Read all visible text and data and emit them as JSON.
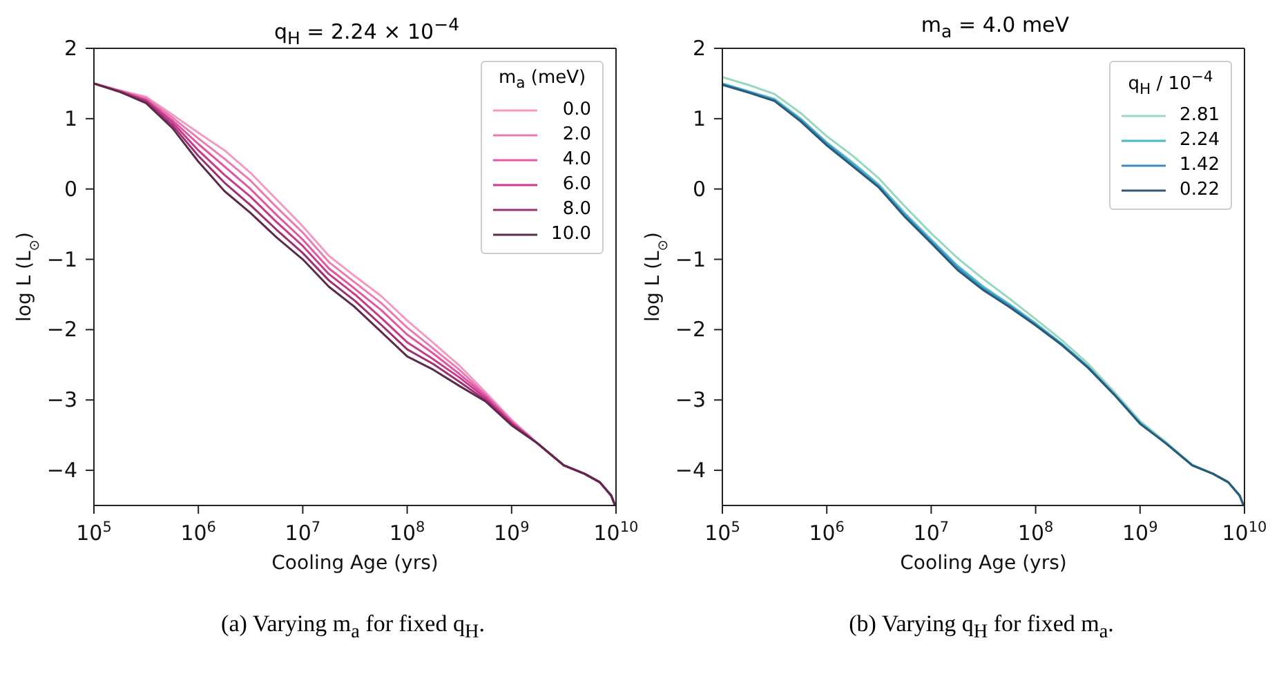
{
  "chart_data": [
    {
      "type": "line",
      "title": "q$_{H}$ = 2.24 × 10$^{−4}$",
      "xlabel": "Cooling Age (yrs)",
      "ylabel": "log L (L$_{⊙}$)",
      "legend_title": "m$_{a}$ (meV)",
      "legend": "top right",
      "log": "x",
      "annotations": [
        "(a) Varying m$_{a}$ for fixed q$_{H}$."
      ],
      "xlim": [
        100000,
        10000000000
      ],
      "xticks": [
        {
          "value": 100000,
          "label": "10$^{5}$"
        },
        {
          "value": 1000000,
          "label": "10$^{6}$"
        },
        {
          "value": 10000000,
          "label": "10$^{7}$"
        },
        {
          "value": 100000000,
          "label": "10$^{8}$"
        },
        {
          "value": 1000000000,
          "label": "10$^{9}$"
        },
        {
          "value": 10000000000,
          "label": "10$^{10}$"
        }
      ],
      "ylim": [
        -4.5,
        2
      ],
      "yticks": [
        {
          "value": -4,
          "label": "−4"
        },
        {
          "value": -3,
          "label": "−3"
        },
        {
          "value": -2,
          "label": "−2"
        },
        {
          "value": -1,
          "label": "−1"
        },
        0,
        1,
        2
      ],
      "x": [
        100000,
        178000,
        316000,
        562000,
        1000000,
        1780000,
        3160000,
        5620000,
        10000000,
        17800000,
        31600000,
        56200000,
        100000000,
        178000000,
        316000000,
        562000000,
        1000000000,
        1780000000,
        3160000000,
        5000000000,
        7000000000,
        9000000000,
        9800000000
      ],
      "series": [
        {
          "name": "0.0",
          "color": "#f49ac1",
          "values": [
            1.5,
            1.4,
            1.31,
            1.06,
            0.8,
            0.55,
            0.23,
            -0.15,
            -0.53,
            -0.95,
            -1.24,
            -1.52,
            -1.87,
            -2.19,
            -2.51,
            -2.89,
            -3.28,
            -3.62,
            -3.93,
            -4.05,
            -4.17,
            -4.36,
            -4.5
          ]
        },
        {
          "name": "2.0",
          "color": "#ea7ab4",
          "values": [
            1.5,
            1.4,
            1.29,
            1.02,
            0.72,
            0.43,
            0.12,
            -0.26,
            -0.62,
            -1.04,
            -1.33,
            -1.62,
            -1.97,
            -2.27,
            -2.57,
            -2.92,
            -3.3,
            -3.62,
            -3.93,
            -4.05,
            -4.17,
            -4.36,
            -4.5
          ]
        },
        {
          "name": "4.0",
          "color": "#df57a3",
          "values": [
            1.5,
            1.39,
            1.27,
            0.98,
            0.64,
            0.32,
            0.0,
            -0.37,
            -0.72,
            -1.13,
            -1.42,
            -1.72,
            -2.07,
            -2.34,
            -2.63,
            -2.94,
            -3.31,
            -3.62,
            -3.93,
            -4.05,
            -4.17,
            -4.36,
            -4.5
          ]
        },
        {
          "name": "6.0",
          "color": "#c73a8c",
          "values": [
            1.5,
            1.39,
            1.26,
            0.95,
            0.55,
            0.2,
            -0.11,
            -0.47,
            -0.81,
            -1.21,
            -1.5,
            -1.83,
            -2.18,
            -2.42,
            -2.68,
            -2.97,
            -3.33,
            -3.62,
            -3.93,
            -4.05,
            -4.17,
            -4.36,
            -4.5
          ]
        },
        {
          "name": "8.0",
          "color": "#9e2f72",
          "values": [
            1.5,
            1.38,
            1.24,
            0.91,
            0.47,
            0.09,
            -0.23,
            -0.58,
            -0.91,
            -1.3,
            -1.59,
            -1.93,
            -2.28,
            -2.49,
            -2.74,
            -3.0,
            -3.34,
            -3.62,
            -3.93,
            -4.05,
            -4.17,
            -4.36,
            -4.5
          ]
        },
        {
          "name": "10.0",
          "color": "#5c2a4a",
          "values": [
            1.5,
            1.38,
            1.22,
            0.87,
            0.39,
            -0.03,
            -0.34,
            -0.69,
            -1.0,
            -1.39,
            -1.68,
            -2.03,
            -2.38,
            -2.57,
            -2.8,
            -3.02,
            -3.36,
            -3.62,
            -3.93,
            -4.05,
            -4.17,
            -4.36,
            -4.5
          ]
        }
      ]
    },
    {
      "type": "line",
      "title": "m$_{a}$ = 4.0 meV",
      "xlabel": "Cooling Age (yrs)",
      "ylabel": "log L (L$_{⊙}$)",
      "legend_title": "q$_{H}$ / 10$^{−4}$",
      "legend": "top right",
      "log": "x",
      "annotations": [
        "(b) Varying q$_{H}$ for fixed m$_{a}$."
      ],
      "xlim": [
        100000,
        10000000000
      ],
      "xticks": [
        {
          "value": 100000,
          "label": "10$^{5}$"
        },
        {
          "value": 1000000,
          "label": "10$^{6}$"
        },
        {
          "value": 10000000,
          "label": "10$^{7}$"
        },
        {
          "value": 100000000,
          "label": "10$^{8}$"
        },
        {
          "value": 1000000000,
          "label": "10$^{9}$"
        },
        {
          "value": 10000000000,
          "label": "10$^{10}$"
        }
      ],
      "ylim": [
        -4.5,
        2
      ],
      "yticks": [
        {
          "value": -4,
          "label": "−4"
        },
        {
          "value": -3,
          "label": "−3"
        },
        {
          "value": -2,
          "label": "−2"
        },
        {
          "value": -1,
          "label": "−1"
        },
        0,
        1,
        2
      ],
      "x": [
        100000,
        178000,
        316000,
        562000,
        1000000,
        1780000,
        3160000,
        5620000,
        10000000,
        17800000,
        31600000,
        56200000,
        100000000,
        178000000,
        316000000,
        562000000,
        1000000000,
        1780000000,
        3160000000,
        5000000000,
        7000000000,
        9000000000,
        9800000000
      ],
      "series": [
        {
          "name": "2.81",
          "color": "#98d8c0",
          "values": [
            1.59,
            1.48,
            1.35,
            1.08,
            0.75,
            0.47,
            0.15,
            -0.25,
            -0.63,
            -0.98,
            -1.28,
            -1.56,
            -1.85,
            -2.15,
            -2.48,
            -2.88,
            -3.3,
            -3.6,
            -3.92,
            -4.05,
            -4.17,
            -4.36,
            -4.5
          ]
        },
        {
          "name": "2.24",
          "color": "#4cb8cc",
          "values": [
            1.5,
            1.39,
            1.28,
            1.0,
            0.66,
            0.37,
            0.06,
            -0.35,
            -0.72,
            -1.09,
            -1.39,
            -1.64,
            -1.91,
            -2.2,
            -2.52,
            -2.91,
            -3.32,
            -3.62,
            -3.93,
            -4.05,
            -4.17,
            -4.36,
            -4.5
          ]
        },
        {
          "name": "1.42",
          "color": "#3a8cc0",
          "values": [
            1.49,
            1.38,
            1.26,
            0.98,
            0.64,
            0.34,
            0.03,
            -0.38,
            -0.75,
            -1.12,
            -1.42,
            -1.66,
            -1.93,
            -2.21,
            -2.53,
            -2.92,
            -3.33,
            -3.62,
            -3.93,
            -4.05,
            -4.17,
            -4.36,
            -4.5
          ]
        },
        {
          "name": "0.22",
          "color": "#2a5a78",
          "values": [
            1.48,
            1.37,
            1.25,
            0.96,
            0.62,
            0.32,
            0.02,
            -0.4,
            -0.77,
            -1.15,
            -1.44,
            -1.68,
            -1.94,
            -2.22,
            -2.54,
            -2.92,
            -3.34,
            -3.62,
            -3.93,
            -4.05,
            -4.17,
            -4.36,
            -4.5
          ]
        }
      ]
    }
  ]
}
